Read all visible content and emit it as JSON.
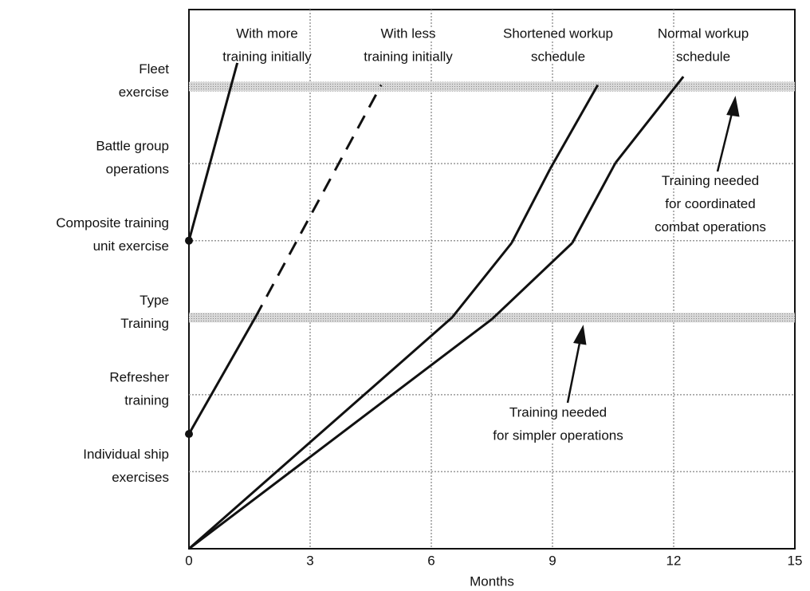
{
  "chart_data": {
    "type": "line",
    "x_label": "Months",
    "xlim": [
      0,
      15
    ],
    "xticks": [
      0,
      3,
      6,
      9,
      12,
      15
    ],
    "ylim": [
      0,
      7
    ],
    "yticks": [
      {
        "value": 1,
        "label": "Individual ship\nexercises"
      },
      {
        "value": 2,
        "label": "Refresher\ntraining"
      },
      {
        "value": 3,
        "label": "Type\nTraining"
      },
      {
        "value": 4,
        "label": "Composite training\nunit exercise"
      },
      {
        "value": 5,
        "label": "Battle group\noperations"
      },
      {
        "value": 6,
        "label": "Fleet\nexercise"
      }
    ],
    "highlight_levels": [
      3,
      6
    ],
    "grid": true,
    "series": [
      {
        "name": "With more training initially",
        "color": "#111111",
        "x": [
          0,
          1.24
        ],
        "values": [
          4,
          6.39
        ],
        "segment_styles": [
          "solid"
        ],
        "start_marker": true
      },
      {
        "name": "With less training initially",
        "color": "#111111",
        "x": [
          0,
          1.64,
          4.76
        ],
        "values": [
          1.49,
          3,
          6.02
        ],
        "segment_styles": [
          "solid",
          "dashed"
        ],
        "start_marker": true
      },
      {
        "name": "Shortened workup schedule",
        "color": "#111111",
        "x": [
          0,
          6.51,
          7.99,
          8.94,
          10.12
        ],
        "values": [
          0,
          3,
          3.97,
          4.93,
          6.02
        ],
        "segment_styles": [
          "solid",
          "solid",
          "solid",
          "solid"
        ],
        "start_marker": false
      },
      {
        "name": "Normal workup schedule",
        "color": "#111111",
        "x": [
          0,
          7.5,
          9.49,
          10.56,
          12.24
        ],
        "values": [
          0,
          2.98,
          3.97,
          5.01,
          6.13
        ],
        "segment_styles": [
          "solid",
          "solid",
          "solid",
          "solid"
        ],
        "start_marker": false
      }
    ],
    "series_labels": [
      "With more\ntraining initially",
      "With less\ntraining initially",
      "Shortened workup\nschedule",
      "Normal workup\nschedule"
    ],
    "annotations": [
      "Training needed\nfor coordinated\ncombat operations",
      "Training needed\nfor simpler operations"
    ]
  }
}
